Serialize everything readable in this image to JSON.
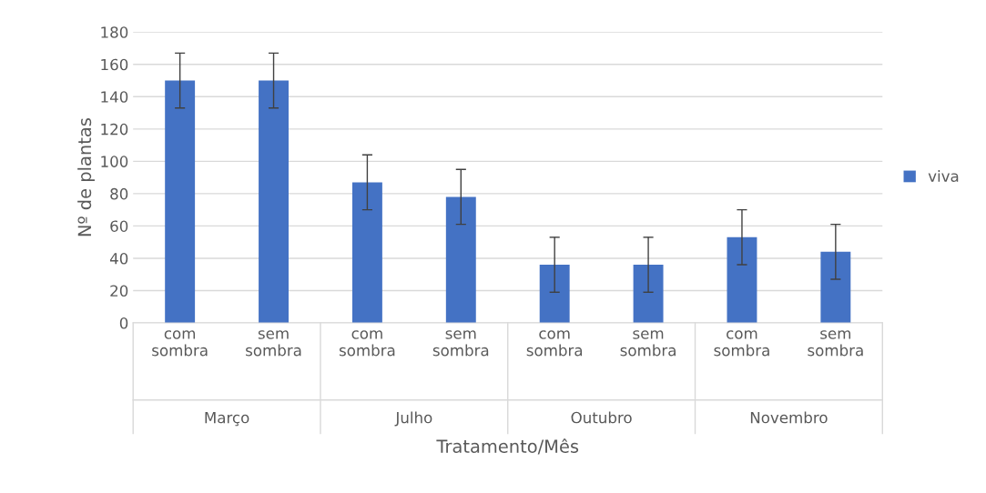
{
  "chart_data": {
    "type": "bar",
    "categories": [
      "com sombra",
      "sem sombra",
      "com sombra",
      "sem sombra",
      "com sombra",
      "sem sombra",
      "com sombra",
      "sem sombra"
    ],
    "series": [
      {
        "name": "viva",
        "color": "#4472c4",
        "values": [
          150,
          150,
          87,
          78,
          36,
          36,
          53,
          44
        ],
        "errors": [
          17,
          17,
          17,
          17,
          17,
          17,
          17,
          17
        ]
      }
    ],
    "annotations": [
      "Março",
      "Julho",
      "Outubro",
      "Novembro"
    ],
    "xlabel": "Tratamento/Mês",
    "ylabel": "Nº de plantas",
    "ylim": [
      0,
      180
    ],
    "yticks": [
      0,
      20,
      40,
      60,
      80,
      100,
      120,
      140,
      160,
      180
    ],
    "grid": "y",
    "legend": "right"
  }
}
